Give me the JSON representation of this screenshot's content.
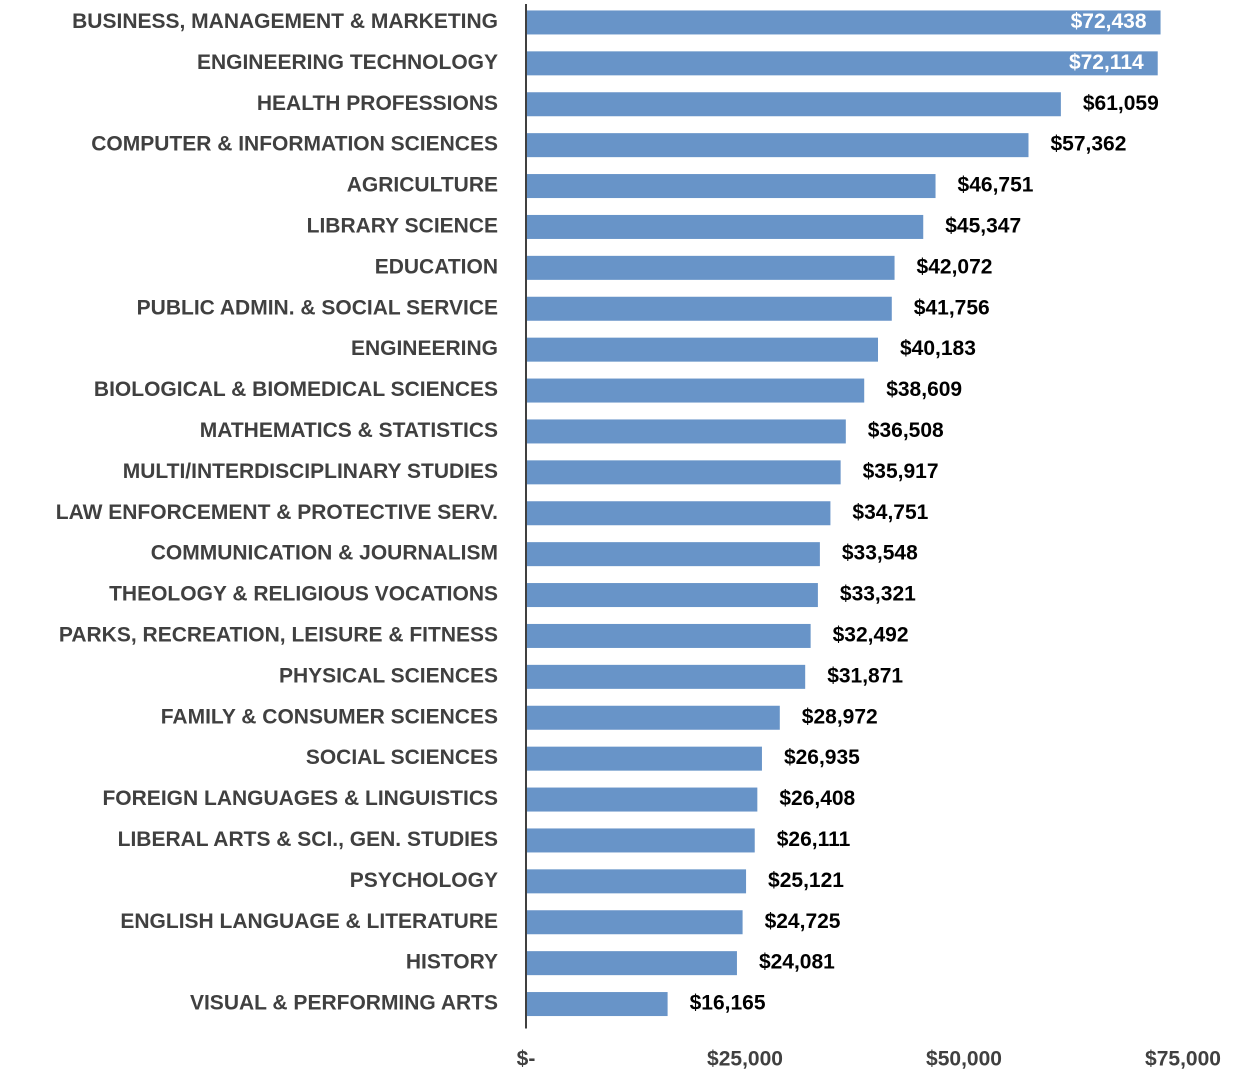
{
  "chart_data": {
    "type": "barh",
    "categories": [
      "BUSINESS, MANAGEMENT & MARKETING",
      "ENGINEERING TECHNOLOGY",
      "HEALTH PROFESSIONS",
      "COMPUTER & INFORMATION SCIENCES",
      "AGRICULTURE",
      "LIBRARY SCIENCE",
      "EDUCATION",
      "PUBLIC ADMIN. & SOCIAL SERVICE",
      "ENGINEERING",
      "BIOLOGICAL & BIOMEDICAL SCIENCES",
      "MATHEMATICS & STATISTICS",
      "MULTI/INTERDISCIPLINARY STUDIES",
      "LAW ENFORCEMENT & PROTECTIVE SERV.",
      "COMMUNICATION & JOURNALISM",
      "THEOLOGY & RELIGIOUS VOCATIONS",
      "PARKS, RECREATION, LEISURE & FITNESS",
      "PHYSICAL SCIENCES",
      "FAMILY & CONSUMER SCIENCES",
      "SOCIAL SCIENCES",
      "FOREIGN LANGUAGES & LINGUISTICS",
      "LIBERAL ARTS & SCI., GEN. STUDIES",
      "PSYCHOLOGY",
      "ENGLISH LANGUAGE & LITERATURE",
      "HISTORY",
      "VISUAL & PERFORMING ARTS"
    ],
    "values": [
      72438,
      72114,
      61059,
      57362,
      46751,
      45347,
      42072,
      41756,
      40183,
      38609,
      36508,
      35917,
      34751,
      33548,
      33321,
      32492,
      31871,
      28972,
      26935,
      26408,
      26111,
      25121,
      24725,
      24081,
      16165
    ],
    "value_labels": [
      "$72,438",
      "$72,114",
      "$61,059",
      "$57,362",
      "$46,751",
      "$45,347",
      "$42,072",
      "$41,756",
      "$40,183",
      "$38,609",
      "$36,508",
      "$35,917",
      "$34,751",
      "$33,548",
      "$33,321",
      "$32,492",
      "$31,871",
      "$28,972",
      "$26,935",
      "$26,408",
      "$26,111",
      "$25,121",
      "$24,725",
      "$24,081",
      "$16,165"
    ],
    "color": "#6894c8",
    "xlim": [
      0,
      75000
    ],
    "xticks": [
      {
        "value": 0,
        "label": "$-"
      },
      {
        "value": 25000,
        "label": "$25,000"
      },
      {
        "value": 50000,
        "label": "$50,000"
      },
      {
        "value": 75000,
        "label": "$75,000"
      }
    ],
    "grid": false
  }
}
